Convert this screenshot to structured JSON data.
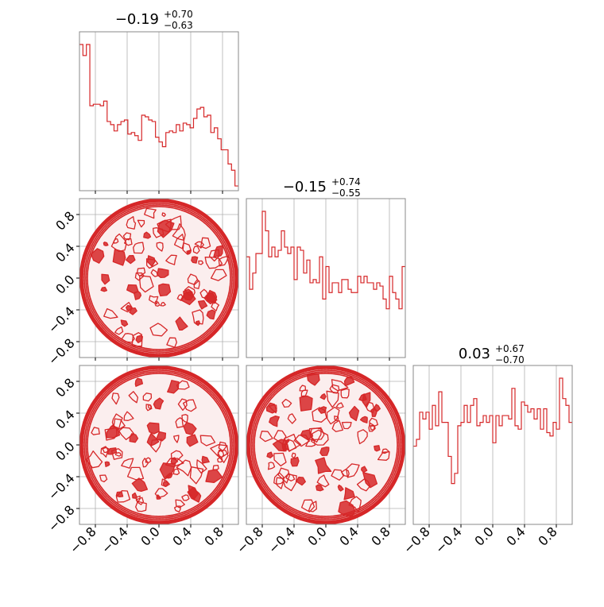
{
  "colors": {
    "series": "#d62728",
    "fill_light": "#f4c9c9",
    "grid": "#b0b0b0",
    "frame": "#888888"
  },
  "chart_data": {
    "type": "corner",
    "parameters": [
      {
        "title_main": "−0.19",
        "title_plus": "+0.70",
        "title_minus": "−0.63",
        "median": -0.19,
        "range": [
          -1.0,
          1.0
        ],
        "hist_type": "step",
        "hist_values": [
          0.93,
          0.86,
          0.93,
          0.54,
          0.55,
          0.55,
          0.54,
          0.57,
          0.44,
          0.42,
          0.38,
          0.42,
          0.44,
          0.45,
          0.36,
          0.37,
          0.35,
          0.32,
          0.48,
          0.47,
          0.45,
          0.44,
          0.34,
          0.31,
          0.28,
          0.37,
          0.38,
          0.37,
          0.42,
          0.38,
          0.43,
          0.42,
          0.4,
          0.46,
          0.52,
          0.53,
          0.47,
          0.48,
          0.37,
          0.4,
          0.33,
          0.26,
          0.26,
          0.17,
          0.13,
          0.03
        ]
      },
      {
        "title_main": "−0.15",
        "title_plus": "+0.74",
        "title_minus": "−0.55",
        "median": -0.15,
        "range": [
          -1.0,
          1.0
        ],
        "hist_type": "step",
        "hist_values": [
          0.62,
          0.42,
          0.52,
          0.64,
          0.64,
          0.9,
          0.78,
          0.62,
          0.68,
          0.62,
          0.66,
          0.78,
          0.68,
          0.64,
          0.68,
          0.48,
          0.68,
          0.66,
          0.52,
          0.6,
          0.46,
          0.48,
          0.46,
          0.62,
          0.36,
          0.56,
          0.4,
          0.46,
          0.46,
          0.4,
          0.48,
          0.48,
          0.42,
          0.4,
          0.4,
          0.5,
          0.46,
          0.5,
          0.46,
          0.46,
          0.42,
          0.46,
          0.44,
          0.36,
          0.3,
          0.5,
          0.4,
          0.36,
          0.3,
          0.56
        ]
      },
      {
        "title_main": "0.03",
        "title_plus": "+0.67",
        "title_minus": "−0.70",
        "median": 0.03,
        "range": [
          -1.0,
          1.0
        ],
        "hist_type": "step",
        "hist_values": [
          0.46,
          0.5,
          0.66,
          0.62,
          0.66,
          0.56,
          0.7,
          0.58,
          0.78,
          0.6,
          0.6,
          0.4,
          0.24,
          0.3,
          0.58,
          0.6,
          0.7,
          0.6,
          0.7,
          0.74,
          0.58,
          0.6,
          0.64,
          0.6,
          0.64,
          0.48,
          0.64,
          0.58,
          0.64,
          0.64,
          0.62,
          0.8,
          0.58,
          0.56,
          0.72,
          0.7,
          0.66,
          0.68,
          0.62,
          0.68,
          0.56,
          0.68,
          0.54,
          0.52,
          0.6,
          0.56,
          0.86,
          0.74,
          0.7,
          0.6
        ]
      }
    ],
    "panels_2d": [
      {
        "row": 1,
        "col": 0,
        "kind": "contour",
        "support": "unit-disk"
      },
      {
        "row": 2,
        "col": 0,
        "kind": "contour",
        "support": "unit-disk"
      },
      {
        "row": 2,
        "col": 1,
        "kind": "contour",
        "support": "unit-disk"
      }
    ],
    "ticks": [
      -0.8,
      -0.4,
      0.0,
      0.4,
      0.8
    ],
    "tick_labels": [
      "−0.8",
      "−0.4",
      "0.0",
      "0.4",
      "0.8"
    ],
    "grid": true,
    "xlabel": "",
    "ylabel": ""
  }
}
